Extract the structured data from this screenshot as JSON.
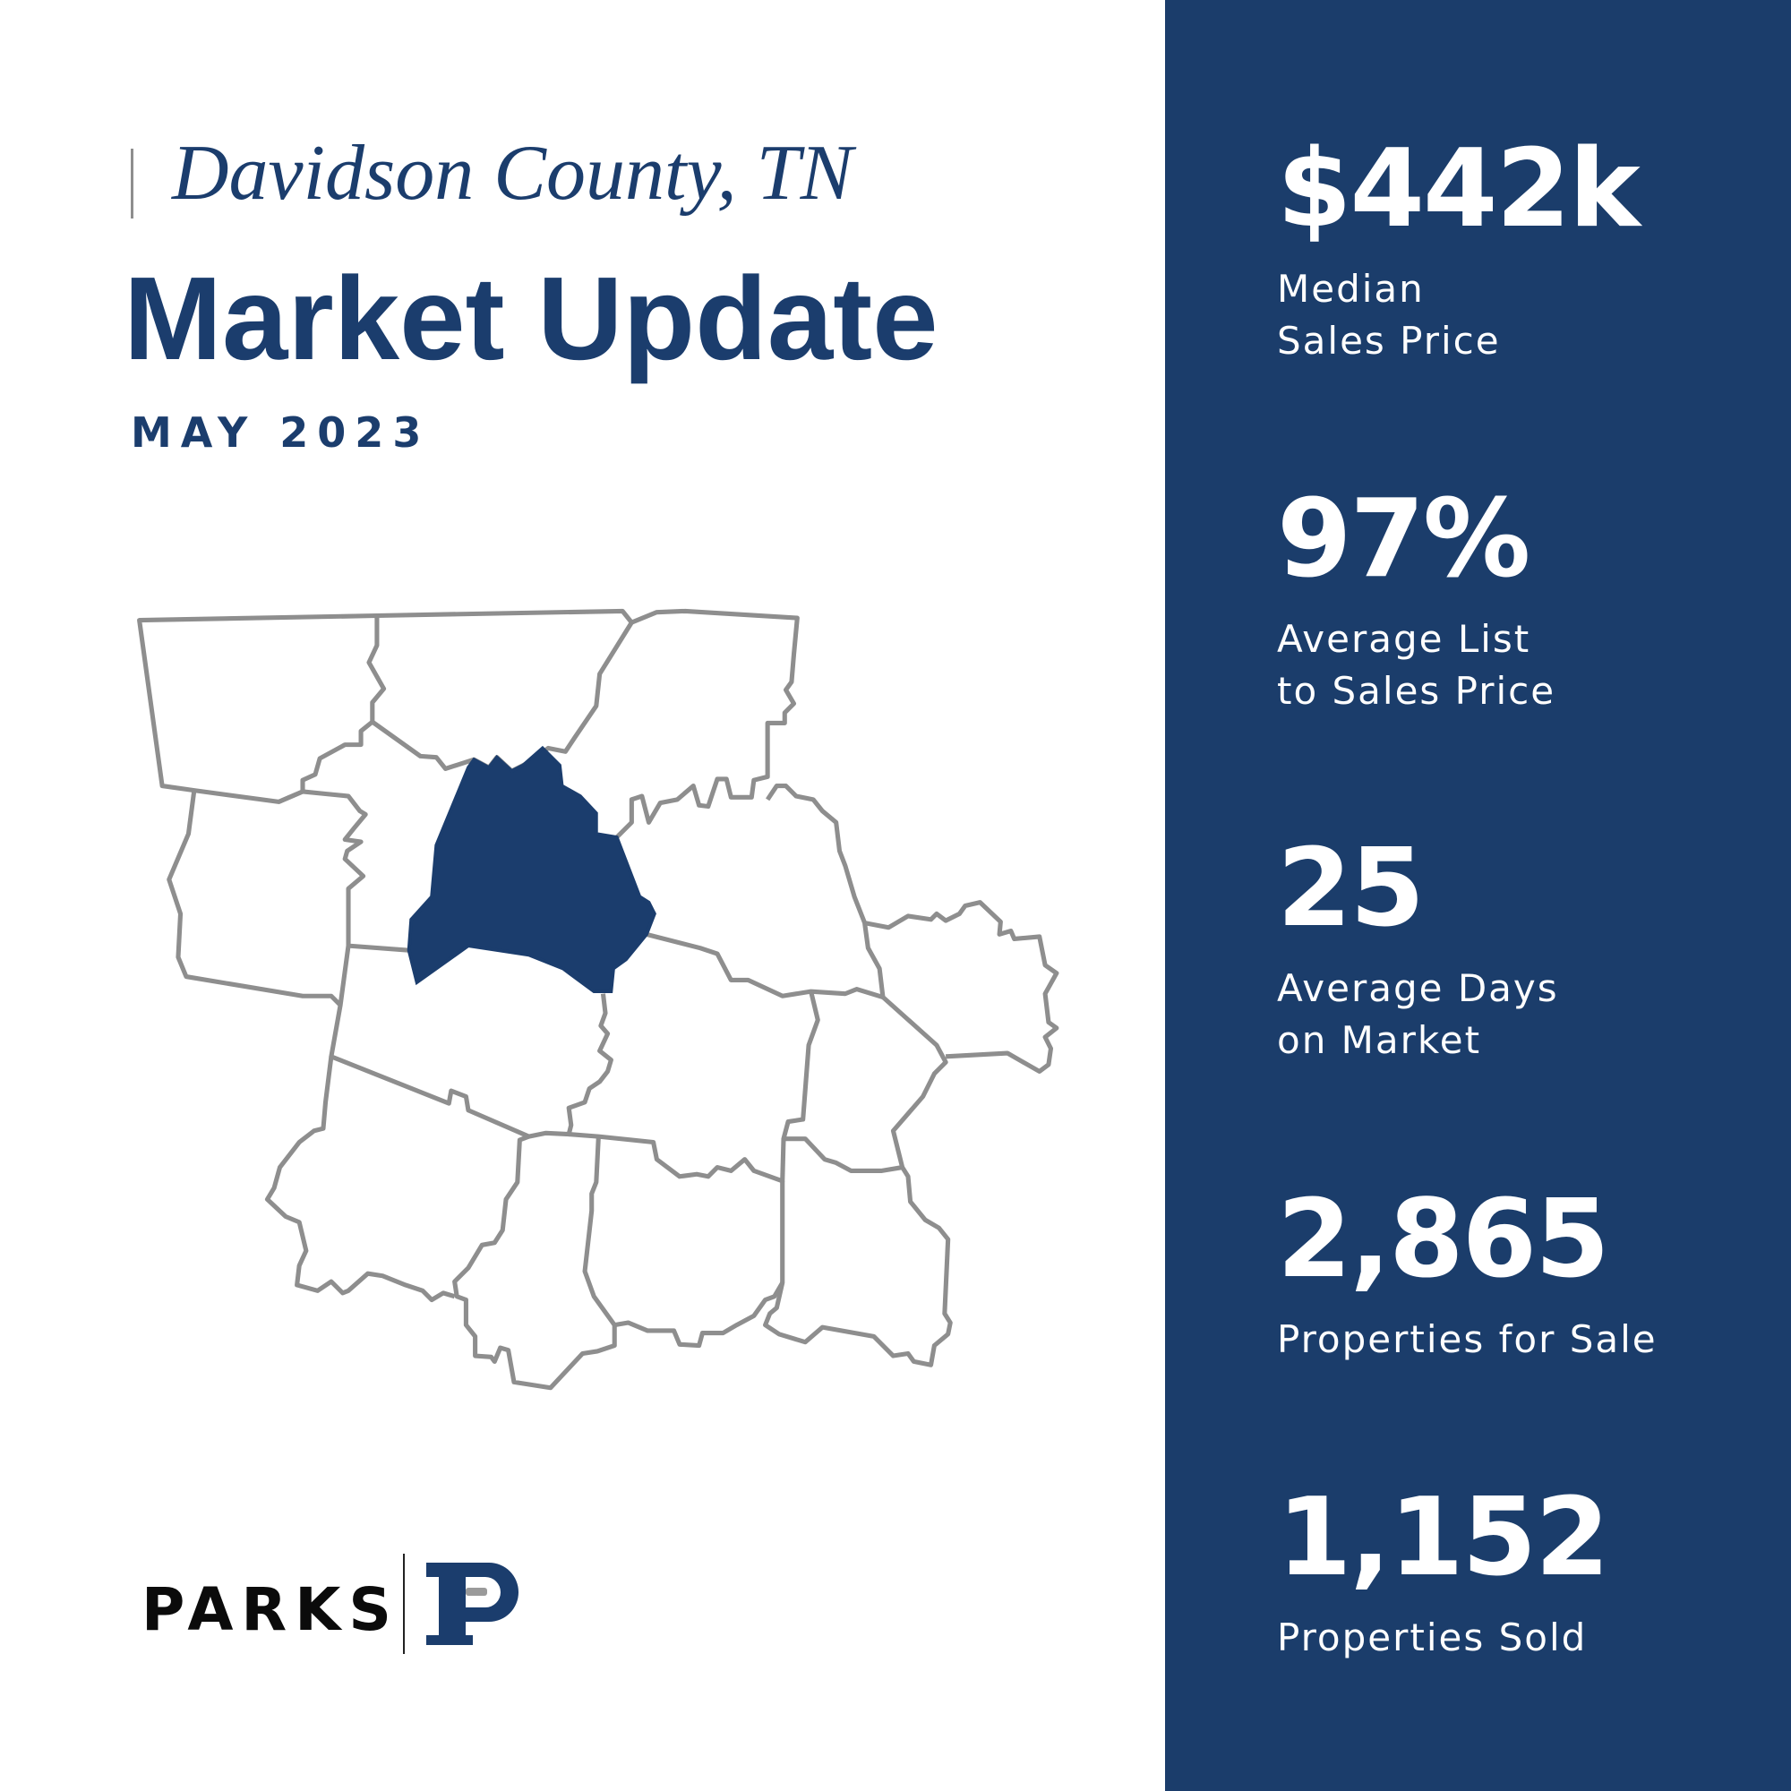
{
  "header": {
    "location": "Davidson County, TN",
    "title": "Market Update",
    "period": "MAY 2023"
  },
  "colors": {
    "brand_navy": "#1b3d6d",
    "map_outline": "#8e8e8e",
    "logo_gray": "#9a9a9a"
  },
  "map": {
    "highlighted_county": "Davidson"
  },
  "stats": [
    {
      "value": "$442k",
      "label_lines": [
        "Median",
        "Sales Price"
      ]
    },
    {
      "value": "97%",
      "label_lines": [
        "Average List",
        "to Sales Price"
      ]
    },
    {
      "value": "25",
      "label_lines": [
        "Average Days",
        "on Market"
      ]
    },
    {
      "value": "2,865",
      "label_lines": [
        "Properties for Sale"
      ]
    },
    {
      "value": "1,152",
      "label_lines": [
        "Properties Sold"
      ]
    }
  ],
  "logo": {
    "wordmark": "PARKS",
    "monogram": "P"
  }
}
